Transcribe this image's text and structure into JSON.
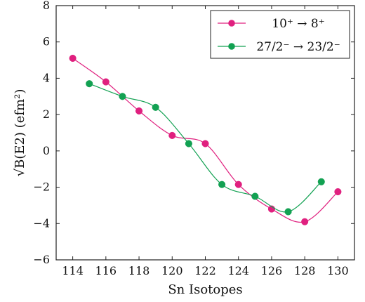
{
  "chart_data": {
    "type": "line",
    "title": "",
    "xlabel": "Sn Isotopes",
    "ylabel": "√B(E2) (efm²)",
    "xlim": [
      113,
      131
    ],
    "ylim": [
      -6,
      8
    ],
    "xticks": [
      114,
      116,
      118,
      120,
      122,
      124,
      126,
      128,
      130
    ],
    "yticks": [
      -6,
      -4,
      -2,
      0,
      2,
      4,
      6,
      8
    ],
    "grid": false,
    "legend_position": "top-right",
    "series": [
      {
        "name": "10⁺ → 8⁺",
        "color": "#e0207f",
        "marker": "circle",
        "x": [
          114,
          116,
          118,
          120,
          122,
          124,
          126,
          128,
          130
        ],
        "y": [
          5.1,
          3.8,
          2.2,
          0.85,
          0.4,
          -1.85,
          -3.2,
          -3.9,
          -2.25
        ]
      },
      {
        "name": "27/2⁻ → 23/2⁻",
        "color": "#12a152",
        "marker": "circle",
        "x": [
          115,
          117,
          119,
          121,
          123,
          125,
          127,
          129
        ],
        "y": [
          3.7,
          3.0,
          2.4,
          0.4,
          -1.85,
          -2.5,
          -3.35,
          -1.7
        ]
      }
    ]
  }
}
